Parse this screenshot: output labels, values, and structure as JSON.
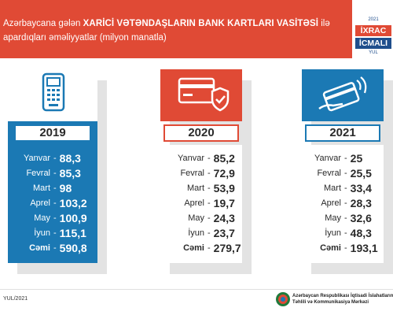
{
  "header": {
    "line1_prefix": "Azərbaycana gələn ",
    "line1_bold": "XARİCİ VƏTƏNDAŞLARIN BANK KARTLARI VASİTƏSİ",
    "line1_suffix": " ilə",
    "line2": "apardıqları əməliyyatlar (milyon manatla)"
  },
  "badge": {
    "line1": "İXRAC",
    "line2": "İCMALI",
    "top_small": "2021",
    "bottom_small": "YUL"
  },
  "colors": {
    "red": "#e04a35",
    "blue": "#1b79b4",
    "navy": "#1f4e8c"
  },
  "cards": [
    {
      "year": "2019",
      "icon": "card-terminal-icon",
      "rows": [
        {
          "month": "Yanvar",
          "value": "88,3"
        },
        {
          "month": "Fevral",
          "value": "85,3"
        },
        {
          "month": "Mart",
          "value": "98"
        },
        {
          "month": "Aprel",
          "value": "103,2"
        },
        {
          "month": "May",
          "value": "100,9"
        },
        {
          "month": "İyun",
          "value": "115,1"
        },
        {
          "month": "Cəmi",
          "value": "590,8"
        }
      ]
    },
    {
      "year": "2020",
      "icon": "secure-card-icon",
      "rows": [
        {
          "month": "Yanvar",
          "value": "85,2"
        },
        {
          "month": "Fevral",
          "value": "72,9"
        },
        {
          "month": "Mart",
          "value": "53,9"
        },
        {
          "month": "Aprel",
          "value": "19,7"
        },
        {
          "month": "May",
          "value": "24,3"
        },
        {
          "month": "İyun",
          "value": "23,7"
        },
        {
          "month": "Cəmi",
          "value": "279,7"
        }
      ]
    },
    {
      "year": "2021",
      "icon": "contactless-payment-icon",
      "rows": [
        {
          "month": "Yanvar",
          "value": "25"
        },
        {
          "month": "Fevral",
          "value": "25,5"
        },
        {
          "month": "Mart",
          "value": "33,4"
        },
        {
          "month": "Aprel",
          "value": "28,3"
        },
        {
          "month": "May",
          "value": "32,6"
        },
        {
          "month": "İyun",
          "value": "48,3"
        },
        {
          "month": "Cəmi",
          "value": "193,1"
        }
      ]
    }
  ],
  "footer": {
    "date": "YUL/2021",
    "org_line1": "Azərbaycan Respublikası İqtisadi İslahatların",
    "org_line2": "Təhlili və Kommunikasiya Mərkəzi"
  }
}
